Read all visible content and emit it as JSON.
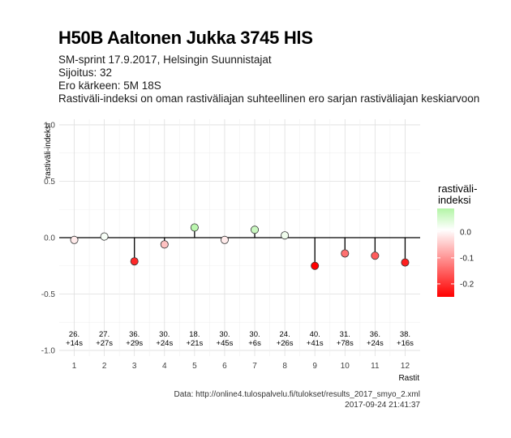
{
  "header": {
    "title": "H50B Aaltonen Jukka 3745 HlS",
    "lines": [
      "SM-sprint 17.9.2017, Helsingin Suunnistajat",
      "Sijoitus: 32",
      "Ero kärkeen: 5M 18S",
      "Rastiväli-indeksi on oman rastiväliajan suhteellinen ero sarjan rastiväliajan keskiarvoon"
    ]
  },
  "footer": {
    "source": "Data: http://online4.tulospalvelu.fi/tulokset/results_2017_smyo_2.xml",
    "timestamp": "2017-09-24 21:41:37"
  },
  "legend": {
    "title": "rastiväli-\nindeksi",
    "ticks": [
      0.0,
      -0.1,
      -0.2
    ],
    "tick_labels": [
      "0.0",
      "-0.1",
      "-0.2"
    ],
    "colors": {
      "positive": "#b3f5a6",
      "zero": "#ffffff",
      "negative": "#ff0000"
    }
  },
  "chart_data": {
    "type": "scatter",
    "xlabel": "Rastit",
    "ylabel": "rastiväli-indeksi",
    "x": [
      1,
      2,
      3,
      4,
      5,
      6,
      7,
      8,
      9,
      10,
      11,
      12
    ],
    "y": [
      -0.02,
      0.01,
      -0.21,
      -0.06,
      0.09,
      -0.02,
      0.07,
      0.02,
      -0.25,
      -0.14,
      -0.16,
      -0.22
    ],
    "point_labels": [
      [
        "26.",
        "+14s"
      ],
      [
        "27.",
        "+27s"
      ],
      [
        "36.",
        "+29s"
      ],
      [
        "30.",
        "+24s"
      ],
      [
        "18.",
        "+21s"
      ],
      [
        "30.",
        "+45s"
      ],
      [
        "30.",
        "+6s"
      ],
      [
        "24.",
        "+26s"
      ],
      [
        "40.",
        "+41s"
      ],
      [
        "31.",
        "+78s"
      ],
      [
        "36.",
        "+24s"
      ],
      [
        "38.",
        "+16s"
      ]
    ],
    "xticks": [
      "1",
      "2",
      "3",
      "4",
      "5",
      "6",
      "7",
      "8",
      "9",
      "10",
      "11",
      "12"
    ],
    "yticks": [
      1.0,
      0.5,
      0.0,
      -0.5,
      -1.0
    ],
    "ytick_labels": [
      "1.0",
      "0.5",
      "0.0",
      "-0.5",
      "-1.0"
    ],
    "xlim": [
      0.5,
      12.5
    ],
    "ylim": [
      -1.05,
      1.05
    ],
    "grid": true,
    "legend_position": "right"
  }
}
